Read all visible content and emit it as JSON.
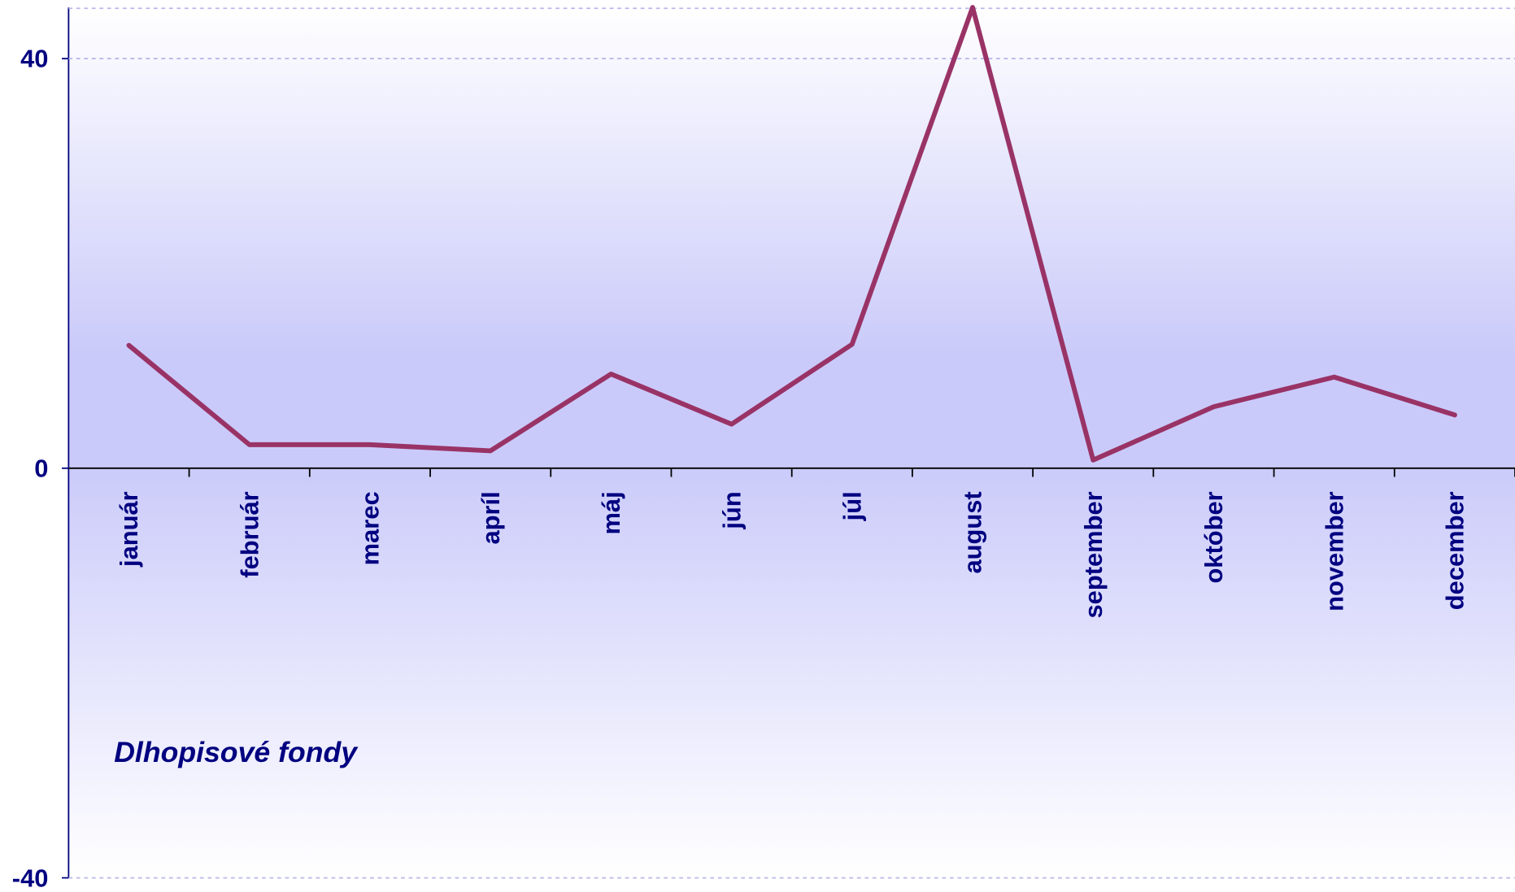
{
  "chart_data": {
    "type": "line",
    "annotation": "Dlhopisové fondy",
    "categories": [
      "január",
      "február",
      "marec",
      "apríl",
      "máj",
      "jún",
      "júl",
      "august",
      "september",
      "október",
      "november",
      "december"
    ],
    "series": [
      {
        "name": "Dlhopisové fondy",
        "color": "#993366",
        "values": [
          12,
          2.3,
          2.3,
          1.7,
          9.2,
          4.3,
          12.1,
          45,
          0.8,
          6,
          8.9,
          5.2
        ]
      }
    ],
    "ylim": [
      -40,
      45
    ],
    "yticks": [
      -40,
      0,
      40
    ],
    "grid": true
  }
}
